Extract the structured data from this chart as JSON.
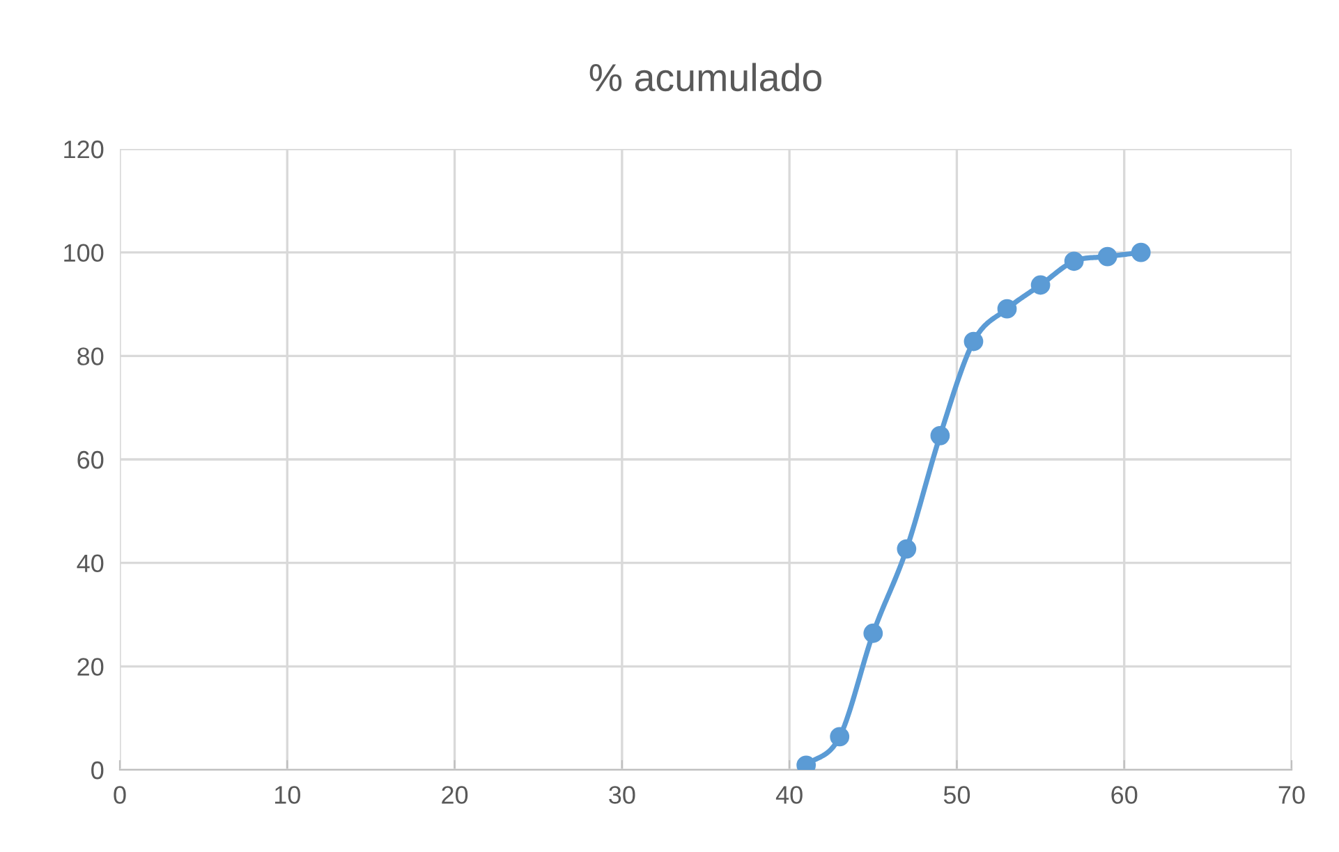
{
  "chart_data": {
    "type": "line",
    "title": "% acumulado",
    "x": [
      41,
      43,
      45,
      47,
      49,
      51,
      53,
      55,
      57,
      59,
      61
    ],
    "series": [
      {
        "color": "#5b9bd5",
        "values": [
          0.9,
          6.4,
          26.4,
          42.7,
          64.6,
          82.8,
          89.1,
          93.7,
          98.3,
          99.2,
          100
        ]
      }
    ],
    "xlim": [
      0,
      70
    ],
    "xticks": [
      0,
      10,
      20,
      30,
      40,
      50,
      60,
      70
    ],
    "ylim": [
      0,
      120
    ],
    "yticks": [
      0,
      20,
      40,
      60,
      80,
      100,
      120
    ],
    "grid": true,
    "marker": "circle",
    "line_style": "solid"
  }
}
